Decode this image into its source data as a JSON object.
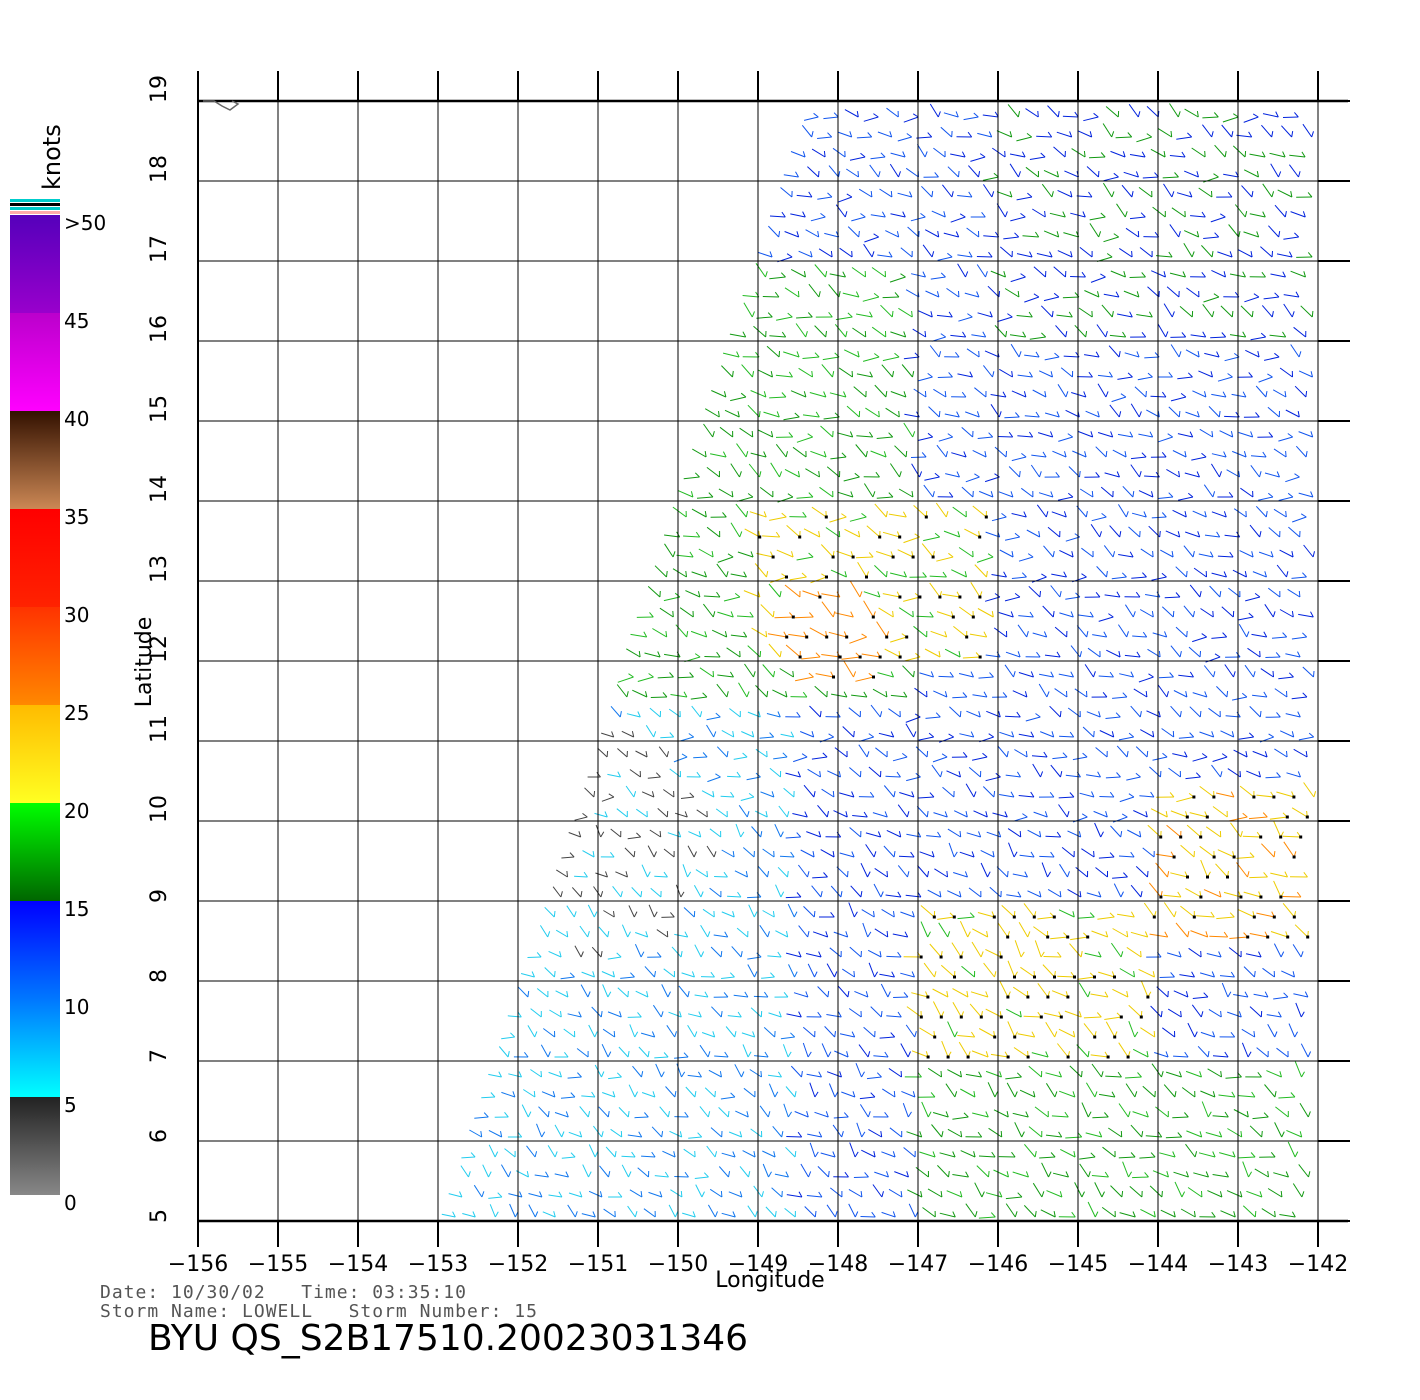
{
  "map": {
    "x_label": "Longitude",
    "y_label": "Latitude",
    "lon_ticks": [
      -156,
      -155,
      -154,
      -153,
      -152,
      -151,
      -150,
      -149,
      -148,
      -147,
      -146,
      -145,
      -144,
      -143,
      -142
    ],
    "lat_ticks": [
      5,
      6,
      7,
      8,
      9,
      10,
      11,
      12,
      13,
      14,
      15,
      16,
      17,
      18,
      19
    ],
    "lon_range": [
      -156,
      -142
    ],
    "lat_range": [
      5,
      19
    ],
    "grid": true
  },
  "legend": {
    "unit": "knots",
    "labels": [
      ">50",
      "45",
      "40",
      "35",
      "30",
      "25",
      "20",
      "15",
      "10",
      "5",
      "0"
    ],
    "bands": [
      {
        "from": 0,
        "to": 5,
        "colors": [
          "#888888",
          "#222222"
        ]
      },
      {
        "from": 5,
        "to": 10,
        "colors": [
          "#00ffff",
          "#0077ff"
        ]
      },
      {
        "from": 10,
        "to": 15,
        "colors": [
          "#0077ff",
          "#0000ff"
        ]
      },
      {
        "from": 15,
        "to": 20,
        "colors": [
          "#006600",
          "#00ff00"
        ]
      },
      {
        "from": 20,
        "to": 25,
        "colors": [
          "#ffff22",
          "#ffbb00"
        ]
      },
      {
        "from": 25,
        "to": 30,
        "colors": [
          "#ff8800",
          "#ff3300"
        ]
      },
      {
        "from": 30,
        "to": 35,
        "colors": [
          "#ff2200",
          "#ff0000"
        ]
      },
      {
        "from": 35,
        "to": 40,
        "colors": [
          "#cc8855",
          "#331100"
        ]
      },
      {
        "from": 40,
        "to": 45,
        "colors": [
          "#ff00ff",
          "#bb00cc"
        ]
      },
      {
        "from": 45,
        "to": 50,
        "colors": [
          "#9900cc",
          "#5500bb"
        ]
      }
    ]
  },
  "info": {
    "date_line": "Date: 10/30/02   Time: 03:35:10",
    "storm_line": "Storm Name: LOWELL   Storm Number: 15",
    "product": "BYU QS_S2B17510.20023031346"
  }
}
